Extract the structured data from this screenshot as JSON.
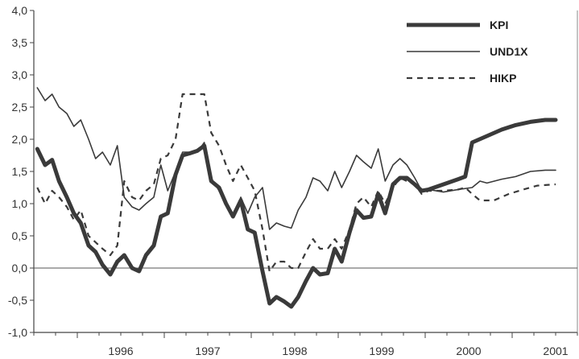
{
  "chart_data": {
    "type": "line",
    "title": "",
    "xlabel": "",
    "ylabel": "",
    "ylim": [
      -1.0,
      4.0
    ],
    "xlim": [
      1995.5,
      2001.75
    ],
    "y_ticks": [
      4.0,
      3.5,
      3.0,
      2.5,
      2.0,
      1.5,
      1.0,
      0.5,
      0.0,
      -0.5,
      -1.0
    ],
    "y_tick_labels": [
      "4,0",
      "3,5",
      "3,0",
      "2,5",
      "2,0",
      "1,5",
      "1,0",
      "0,5",
      "0,0",
      "-0,5",
      "-1,0"
    ],
    "x_tick_labels": [
      {
        "label": "1996",
        "x": 1996.0
      },
      {
        "label": "1997",
        "x": 1997.0
      },
      {
        "label": "1998",
        "x": 1998.0
      },
      {
        "label": "1999",
        "x": 1999.0
      },
      {
        "label": "2000",
        "x": 2000.0
      },
      {
        "label": "2001",
        "x": 2001.0
      }
    ],
    "zero_line": true,
    "grid": false,
    "legend_position": "top-right",
    "series": [
      {
        "name": "KPI",
        "style": "thick",
        "color": "#3a3a3a",
        "points": [
          [
            1995.54,
            1.85
          ],
          [
            1995.63,
            1.6
          ],
          [
            1995.71,
            1.68
          ],
          [
            1995.79,
            1.35
          ],
          [
            1995.88,
            1.1
          ],
          [
            1995.96,
            0.85
          ],
          [
            1996.04,
            0.7
          ],
          [
            1996.13,
            0.35
          ],
          [
            1996.21,
            0.25
          ],
          [
            1996.29,
            0.05
          ],
          [
            1996.38,
            -0.1
          ],
          [
            1996.46,
            0.1
          ],
          [
            1996.54,
            0.2
          ],
          [
            1996.63,
            0.0
          ],
          [
            1996.71,
            -0.05
          ],
          [
            1996.79,
            0.2
          ],
          [
            1996.88,
            0.35
          ],
          [
            1996.96,
            0.8
          ],
          [
            1997.04,
            0.85
          ],
          [
            1997.13,
            1.45
          ],
          [
            1997.21,
            1.75
          ],
          [
            1997.29,
            1.78
          ],
          [
            1997.38,
            1.82
          ],
          [
            1997.46,
            1.9
          ],
          [
            1997.54,
            1.35
          ],
          [
            1997.63,
            1.25
          ],
          [
            1997.71,
            1.0
          ],
          [
            1997.79,
            0.8
          ],
          [
            1997.88,
            1.05
          ],
          [
            1997.96,
            0.6
          ],
          [
            1998.04,
            0.55
          ],
          [
            1998.13,
            -0.05
          ],
          [
            1998.21,
            -0.55
          ],
          [
            1998.29,
            -0.45
          ],
          [
            1998.38,
            -0.52
          ],
          [
            1998.46,
            -0.6
          ],
          [
            1998.54,
            -0.45
          ],
          [
            1998.63,
            -0.2
          ],
          [
            1998.71,
            0.0
          ],
          [
            1998.79,
            -0.1
          ],
          [
            1998.88,
            -0.08
          ],
          [
            1998.96,
            0.3
          ],
          [
            1999.04,
            0.1
          ],
          [
            1999.13,
            0.55
          ],
          [
            1999.21,
            0.9
          ],
          [
            1999.29,
            0.78
          ],
          [
            1999.38,
            0.8
          ],
          [
            1999.46,
            1.15
          ],
          [
            1999.54,
            0.85
          ],
          [
            1999.63,
            1.3
          ],
          [
            1999.71,
            1.4
          ],
          [
            1999.79,
            1.4
          ],
          [
            1999.88,
            1.3
          ],
          [
            1999.96,
            1.2
          ],
          [
            2000.04,
            1.22
          ],
          [
            2000.21,
            1.3
          ],
          [
            2000.38,
            1.38
          ],
          [
            2000.46,
            1.42
          ],
          [
            2000.54,
            1.95
          ],
          [
            2000.71,
            2.05
          ],
          [
            2000.88,
            2.15
          ],
          [
            2001.04,
            2.22
          ],
          [
            2001.21,
            2.27
          ],
          [
            2001.38,
            2.3
          ],
          [
            2001.5,
            2.3
          ]
        ]
      },
      {
        "name": "UND1X",
        "style": "thin",
        "color": "#3a3a3a",
        "points": [
          [
            1995.54,
            2.8
          ],
          [
            1995.63,
            2.6
          ],
          [
            1995.71,
            2.7
          ],
          [
            1995.79,
            2.5
          ],
          [
            1995.88,
            2.4
          ],
          [
            1995.96,
            2.2
          ],
          [
            1996.04,
            2.3
          ],
          [
            1996.13,
            2.0
          ],
          [
            1996.21,
            1.7
          ],
          [
            1996.29,
            1.8
          ],
          [
            1996.38,
            1.6
          ],
          [
            1996.46,
            1.9
          ],
          [
            1996.54,
            1.1
          ],
          [
            1996.63,
            0.95
          ],
          [
            1996.71,
            0.9
          ],
          [
            1996.79,
            1.0
          ],
          [
            1996.88,
            1.1
          ],
          [
            1996.96,
            1.6
          ],
          [
            1997.04,
            1.2
          ],
          [
            1997.13,
            1.5
          ],
          [
            1997.21,
            1.8
          ],
          [
            1997.29,
            1.8
          ],
          [
            1997.38,
            1.8
          ],
          [
            1997.46,
            1.95
          ],
          [
            1997.54,
            1.4
          ],
          [
            1997.63,
            1.2
          ],
          [
            1997.71,
            1.0
          ],
          [
            1997.79,
            0.8
          ],
          [
            1997.88,
            1.1
          ],
          [
            1997.96,
            0.85
          ],
          [
            1998.04,
            1.1
          ],
          [
            1998.13,
            1.25
          ],
          [
            1998.21,
            0.6
          ],
          [
            1998.29,
            0.7
          ],
          [
            1998.38,
            0.65
          ],
          [
            1998.46,
            0.62
          ],
          [
            1998.54,
            0.9
          ],
          [
            1998.63,
            1.1
          ],
          [
            1998.71,
            1.4
          ],
          [
            1998.79,
            1.35
          ],
          [
            1998.88,
            1.2
          ],
          [
            1998.96,
            1.5
          ],
          [
            1999.04,
            1.25
          ],
          [
            1999.13,
            1.5
          ],
          [
            1999.21,
            1.75
          ],
          [
            1999.29,
            1.65
          ],
          [
            1999.38,
            1.55
          ],
          [
            1999.46,
            1.85
          ],
          [
            1999.54,
            1.35
          ],
          [
            1999.63,
            1.6
          ],
          [
            1999.71,
            1.7
          ],
          [
            1999.79,
            1.6
          ],
          [
            1999.88,
            1.4
          ],
          [
            1999.96,
            1.2
          ],
          [
            2000.04,
            1.22
          ],
          [
            2000.21,
            1.18
          ],
          [
            2000.38,
            1.22
          ],
          [
            2000.54,
            1.25
          ],
          [
            2000.63,
            1.35
          ],
          [
            2000.71,
            1.32
          ],
          [
            2000.88,
            1.38
          ],
          [
            2001.04,
            1.42
          ],
          [
            2001.21,
            1.5
          ],
          [
            2001.38,
            1.52
          ],
          [
            2001.5,
            1.52
          ]
        ]
      },
      {
        "name": "HIKP",
        "style": "dashed",
        "color": "#3a3a3a",
        "points": [
          [
            1995.54,
            1.25
          ],
          [
            1995.63,
            1.0
          ],
          [
            1995.71,
            1.2
          ],
          [
            1995.79,
            1.1
          ],
          [
            1995.88,
            0.95
          ],
          [
            1995.96,
            0.75
          ],
          [
            1996.04,
            0.9
          ],
          [
            1996.13,
            0.5
          ],
          [
            1996.21,
            0.4
          ],
          [
            1996.29,
            0.3
          ],
          [
            1996.38,
            0.2
          ],
          [
            1996.46,
            0.35
          ],
          [
            1996.54,
            1.35
          ],
          [
            1996.63,
            1.1
          ],
          [
            1996.71,
            1.05
          ],
          [
            1996.79,
            1.2
          ],
          [
            1996.88,
            1.3
          ],
          [
            1996.96,
            1.7
          ],
          [
            1997.04,
            1.75
          ],
          [
            1997.13,
            2.0
          ],
          [
            1997.21,
            2.7
          ],
          [
            1997.29,
            2.7
          ],
          [
            1997.38,
            2.7
          ],
          [
            1997.46,
            2.7
          ],
          [
            1997.54,
            2.1
          ],
          [
            1997.63,
            1.9
          ],
          [
            1997.71,
            1.6
          ],
          [
            1997.79,
            1.35
          ],
          [
            1997.88,
            1.6
          ],
          [
            1997.96,
            1.4
          ],
          [
            1998.04,
            1.2
          ],
          [
            1998.13,
            0.6
          ],
          [
            1998.21,
            -0.05
          ],
          [
            1998.29,
            0.1
          ],
          [
            1998.38,
            0.1
          ],
          [
            1998.46,
            0.0
          ],
          [
            1998.54,
            0.0
          ],
          [
            1998.63,
            0.25
          ],
          [
            1998.71,
            0.45
          ],
          [
            1998.79,
            0.3
          ],
          [
            1998.88,
            0.3
          ],
          [
            1998.96,
            0.45
          ],
          [
            1999.04,
            0.3
          ],
          [
            1999.13,
            0.6
          ],
          [
            1999.21,
            1.0
          ],
          [
            1999.29,
            1.1
          ],
          [
            1999.38,
            0.95
          ],
          [
            1999.46,
            1.2
          ],
          [
            1999.54,
            1.0
          ],
          [
            1999.63,
            1.25
          ],
          [
            1999.71,
            1.4
          ],
          [
            1999.79,
            1.35
          ],
          [
            1999.88,
            1.3
          ],
          [
            1999.96,
            1.15
          ],
          [
            2000.04,
            1.2
          ],
          [
            2000.21,
            1.2
          ],
          [
            2000.38,
            1.22
          ],
          [
            2000.46,
            1.25
          ],
          [
            2000.54,
            1.15
          ],
          [
            2000.63,
            1.05
          ],
          [
            2000.79,
            1.05
          ],
          [
            2000.96,
            1.15
          ],
          [
            2001.13,
            1.22
          ],
          [
            2001.29,
            1.28
          ],
          [
            2001.5,
            1.3
          ]
        ]
      }
    ]
  }
}
